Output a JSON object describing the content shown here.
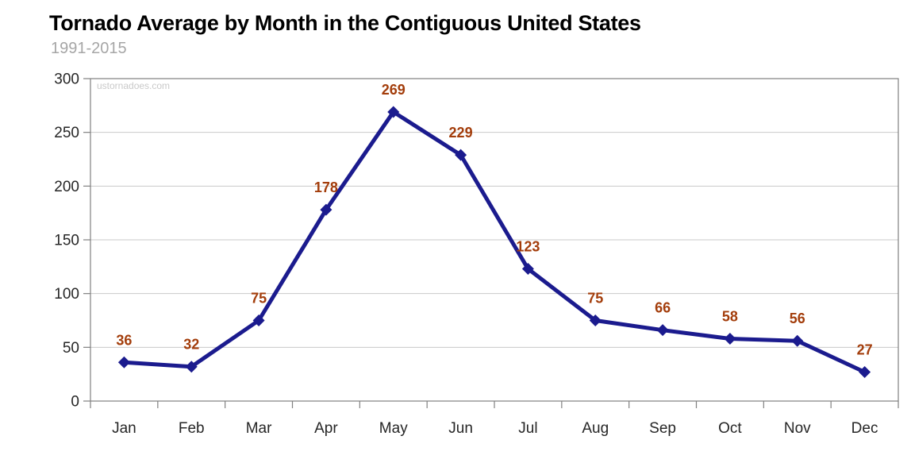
{
  "chart_data": {
    "type": "line",
    "title": "Tornado Average by Month in the Contiguous United States",
    "subtitle": "1991-2015",
    "watermark": "ustornadoes.com",
    "categories": [
      "Jan",
      "Feb",
      "Mar",
      "Apr",
      "May",
      "Jun",
      "Jul",
      "Aug",
      "Sep",
      "Oct",
      "Nov",
      "Dec"
    ],
    "values": [
      36,
      32,
      75,
      178,
      269,
      229,
      123,
      75,
      66,
      58,
      56,
      27
    ],
    "xlabel": "",
    "ylabel": "",
    "ylim": [
      0,
      300
    ],
    "yticks": [
      0,
      50,
      100,
      150,
      200,
      250,
      300
    ],
    "grid": true,
    "legend_position": "none",
    "marker_shape": "diamond",
    "colors": {
      "line": "#1b1b8e",
      "marker": "#1b1b8e",
      "data_label": "#a33d0b",
      "gridline": "#c9c9c9",
      "axis_border": "#808080",
      "tick": "#808080",
      "tick_label": "#262626",
      "title": "#000000",
      "subtitle": "#a6a6a6",
      "watermark": "#c9c9c9",
      "background": "#ffffff"
    }
  }
}
